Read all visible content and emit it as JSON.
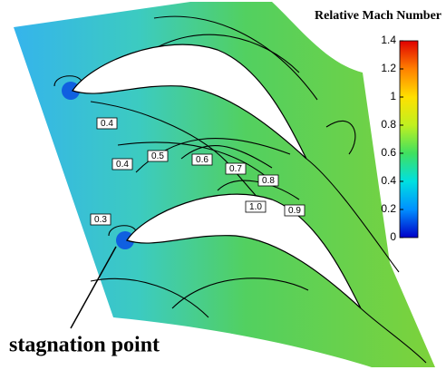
{
  "chart_data": {
    "type": "contour",
    "title": "Relative Mach Number",
    "colorbar": {
      "ylim": [
        0,
        1.4
      ],
      "yticks": [
        0,
        0.2,
        0.4,
        0.6,
        0.8,
        1,
        1.2,
        1.4
      ],
      "colors": [
        "#0000c8",
        "#0090ff",
        "#00e0e0",
        "#40e060",
        "#c0f020",
        "#ffe000",
        "#ff8000",
        "#e00000"
      ]
    },
    "contour_labels": [
      0.4,
      0.4,
      0.5,
      0.6,
      0.7,
      0.8,
      {
        "value": 1,
        "label": "1.0"
      },
      0.9,
      0.3
    ],
    "annotation": "stagnation point"
  }
}
